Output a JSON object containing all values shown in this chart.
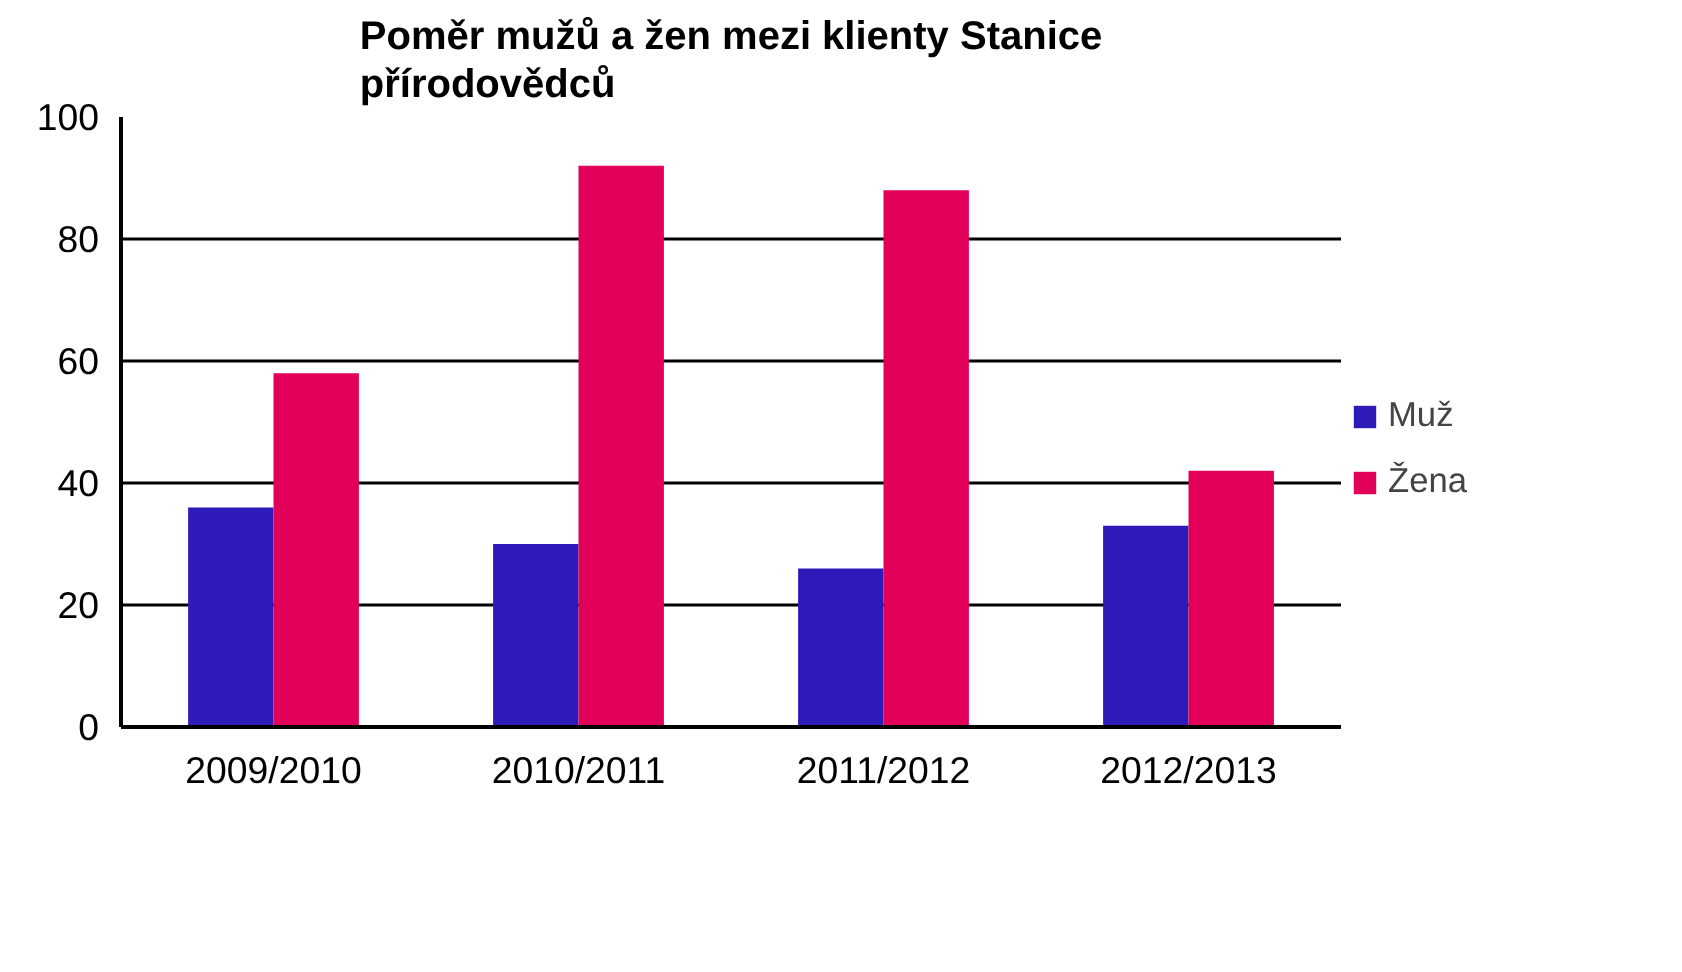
{
  "chart_data": {
    "type": "bar",
    "title": "Poměr mužů a žen mezi klienty Stanice přírodovědců",
    "categories": [
      "2009/2010",
      "2010/2011",
      "2011/2012",
      "2012/2013"
    ],
    "series": [
      {
        "name": "Muž",
        "color": "#2e1ab8",
        "values": [
          36,
          30,
          26,
          33
        ]
      },
      {
        "name": "Žena",
        "color": "#e3005a",
        "values": [
          58,
          92,
          88,
          42
        ]
      }
    ],
    "ylim": [
      0,
      100
    ],
    "yticks": [
      0,
      20,
      40,
      60,
      80,
      100
    ],
    "grid": "y",
    "legend": "right"
  }
}
